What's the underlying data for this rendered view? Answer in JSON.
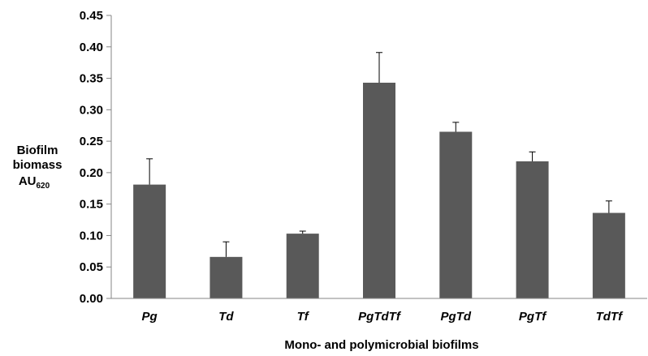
{
  "chart_data": {
    "type": "bar",
    "categories": [
      "Pg",
      "Td",
      "Tf",
      "PgTdTf",
      "PgTd",
      "PgTf",
      "TdTf"
    ],
    "values": [
      0.181,
      0.066,
      0.103,
      0.343,
      0.265,
      0.218,
      0.136
    ],
    "error_upper": [
      0.222,
      0.09,
      0.107,
      0.391,
      0.28,
      0.233,
      0.155
    ],
    "xlabel": "Mono- and polymicrobial biofilms",
    "ylabel": {
      "line1": "Biofilm",
      "line2": "biomass",
      "line3": "AU",
      "subscript": "620"
    },
    "ylim": [
      0,
      0.45
    ],
    "yticks": [
      "0.00",
      "0.05",
      "0.10",
      "0.15",
      "0.20",
      "0.25",
      "0.30",
      "0.35",
      "0.40",
      "0.45"
    ],
    "grid": false,
    "colors": {
      "bar": "#595959",
      "axis": "#868686",
      "error": "#000000"
    }
  }
}
